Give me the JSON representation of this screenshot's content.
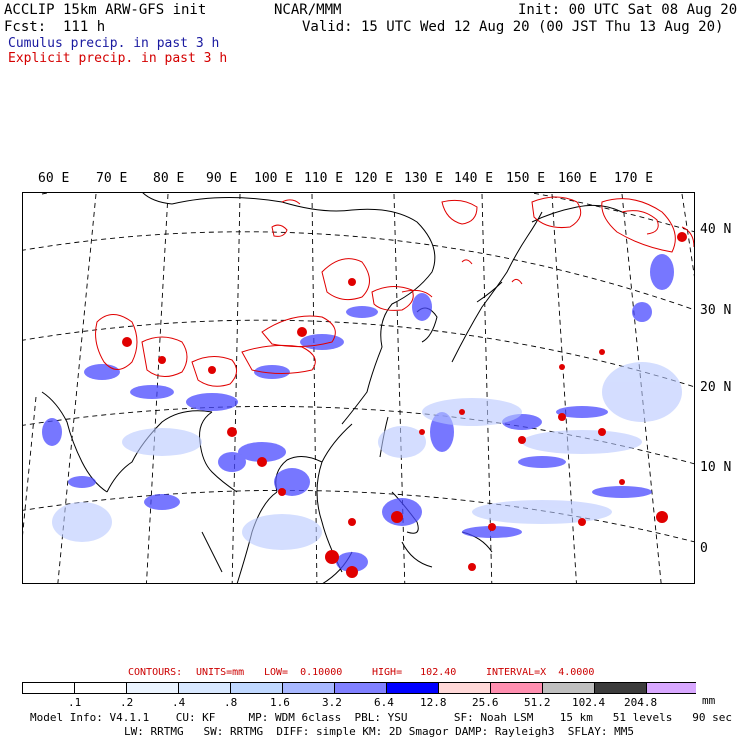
{
  "header": {
    "title": "ACCLIP 15km ARW-GFS init",
    "center": "NCAR/MMM",
    "init": "Init: 00 UTC Sat 08 Aug 20",
    "fcst": "Fcst:  111 h",
    "valid": "Valid: 15 UTC Wed 12 Aug 20 (00 JST Thu 13 Aug 20)",
    "legend_cumulus": "Cumulus precip. in past 3 h",
    "legend_explicit": "Explicit precip. in past 3 h"
  },
  "colors": {
    "cumulus": "#1a1aa0",
    "explicit": "#d40000",
    "contour_red": "#e00000",
    "blue_fill": "#3030ff"
  },
  "map": {
    "lon_labels": [
      "60 E",
      "70 E",
      "80 E",
      "90 E",
      "100 E",
      "110 E",
      "120 E",
      "130 E",
      "140 E",
      "150 E",
      "160 E",
      "170 E"
    ],
    "lat_labels": [
      "40 N",
      "30 N",
      "20 N",
      "10 N",
      "0"
    ]
  },
  "contours": {
    "label": "CONTOURS:",
    "units": "UNITS=mm",
    "low": "LOW=  0.10000",
    "high": "HIGH=   102.40",
    "interval": "INTERVAL=X  4.0000"
  },
  "colorbar": {
    "labels": [
      ".1",
      ".2",
      ".4",
      ".8",
      "1.6",
      "3.2",
      "6.4",
      "12.8",
      "25.6",
      "51.2",
      "102.4",
      "204.8"
    ],
    "unit": "mm",
    "colors": [
      "#ffffff",
      "#ffffff",
      "#ebf4ff",
      "#d8e8ff",
      "#c0d8ff",
      "#a8b8ff",
      "#8080ff",
      "#0000ff",
      "#ffd8d8",
      "#ff8fb0",
      "#bfbfbf",
      "#3c3c3c",
      "#d8a8ff"
    ]
  },
  "footer": {
    "line1": "Model Info: V4.1.1    CU: KF     MP: WDM 6class  PBL: YSU       SF: Noah LSM    15 km   51 levels   90 sec",
    "line2": "LW: RRTMG   SW: RRTMG  DIFF: simple KM: 2D Smagor DAMP: Rayleigh3  SFLAY: MM5"
  }
}
